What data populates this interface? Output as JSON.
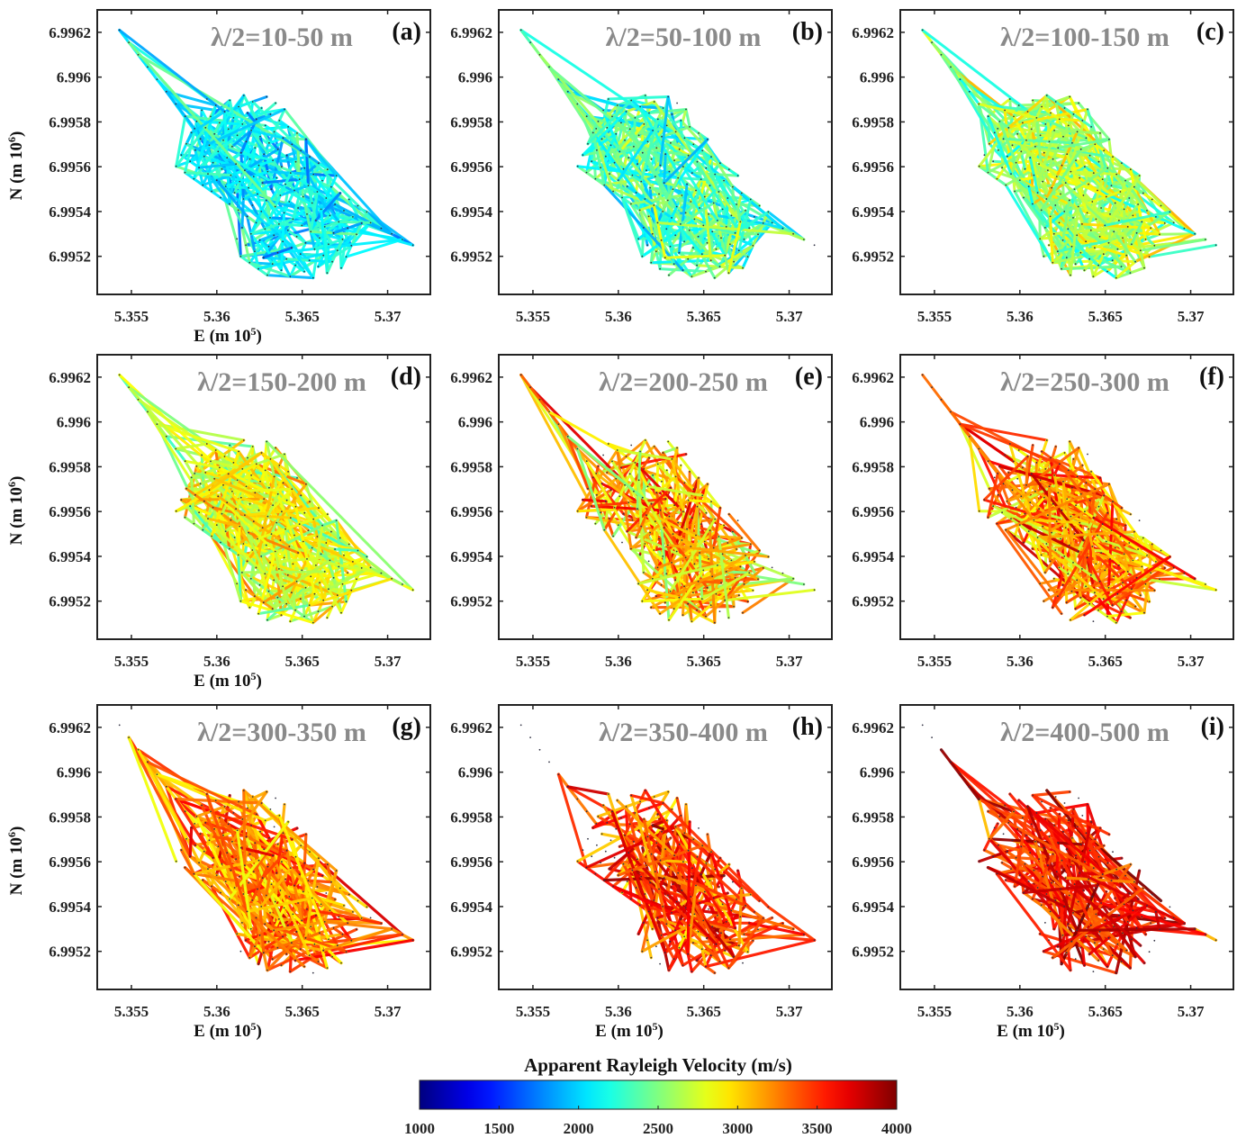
{
  "chart_data": {
    "type": "line",
    "description": "3x3 grid of ray-path maps coloured by apparent Rayleigh velocity",
    "xlabel": "E (m 10^5)",
    "ylabel": "N (m 10^6)",
    "xlim": [
      5.353,
      5.3725
    ],
    "ylim": [
      6.99503,
      6.9963
    ],
    "xticks": [
      "5.355",
      "5.36",
      "5.365",
      "5.37"
    ],
    "xtick_values": [
      5.355,
      5.36,
      5.365,
      5.37
    ],
    "yticks": [
      "6.9962",
      "6.996",
      "6.9958",
      "6.9956",
      "6.9954",
      "6.9952"
    ],
    "ytick_values": [
      6.9962,
      6.996,
      6.9958,
      6.9956,
      6.9954,
      6.9952
    ],
    "panels": [
      {
        "label": "(a)",
        "title": "λ/2=10-50 m",
        "velocity_range": [
          1700,
          2500
        ],
        "dominant_velocity": 2100
      },
      {
        "label": "(b)",
        "title": "λ/2=50-100 m",
        "velocity_range": [
          1900,
          2950
        ],
        "dominant_velocity": 2350
      },
      {
        "label": "(c)",
        "title": "λ/2=100-150 m",
        "velocity_range": [
          2100,
          3100
        ],
        "dominant_velocity": 2600
      },
      {
        "label": "(d)",
        "title": "λ/2=150-200 m",
        "velocity_range": [
          2300,
          3300
        ],
        "dominant_velocity": 2800
      },
      {
        "label": "(e)",
        "title": "λ/2=200-250 m",
        "velocity_range": [
          2500,
          3900
        ],
        "dominant_velocity": 3050
      },
      {
        "label": "(f)",
        "title": "λ/2=250-300 m",
        "velocity_range": [
          2700,
          3900
        ],
        "dominant_velocity": 3200
      },
      {
        "label": "(g)",
        "title": "λ/2=300-350 m",
        "velocity_range": [
          2800,
          3800
        ],
        "dominant_velocity": 3250
      },
      {
        "label": "(h)",
        "title": "λ/2=350-400 m",
        "velocity_range": [
          2900,
          3950
        ],
        "dominant_velocity": 3450
      },
      {
        "label": "(i)",
        "title": "λ/2=400-500 m",
        "velocity_range": [
          3000,
          4000
        ],
        "dominant_velocity": 3550
      }
    ],
    "colorbar": {
      "title": "Apparent Rayleigh Velocity (m/s)",
      "range": [
        1000,
        4000
      ],
      "ticks": [
        "1000",
        "1500",
        "2000",
        "2500",
        "3000",
        "3500",
        "4000"
      ],
      "tick_values": [
        1000,
        1500,
        2000,
        2500,
        3000,
        3500,
        4000
      ],
      "colormap": "jet"
    },
    "grid": false
  }
}
